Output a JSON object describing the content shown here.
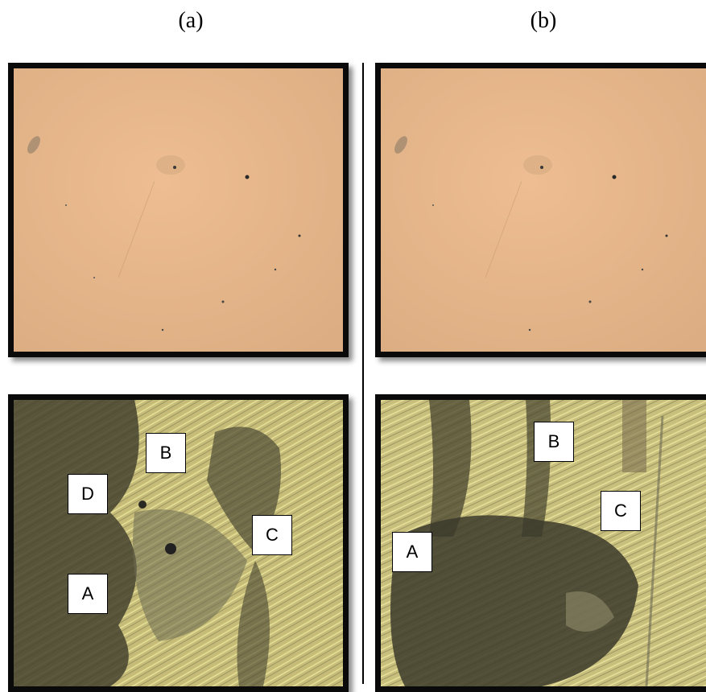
{
  "columns": [
    {
      "title": "(a)",
      "labels": [
        "A",
        "B",
        "C",
        "D"
      ]
    },
    {
      "title": "(b)",
      "labels": [
        "A",
        "B",
        "C"
      ]
    }
  ],
  "colors": {
    "clean_surface": "#e6b489",
    "corroded_light": "#c7bd7a",
    "corroded_dark": "#3f3d2c",
    "frame": "#0a0a0a"
  }
}
